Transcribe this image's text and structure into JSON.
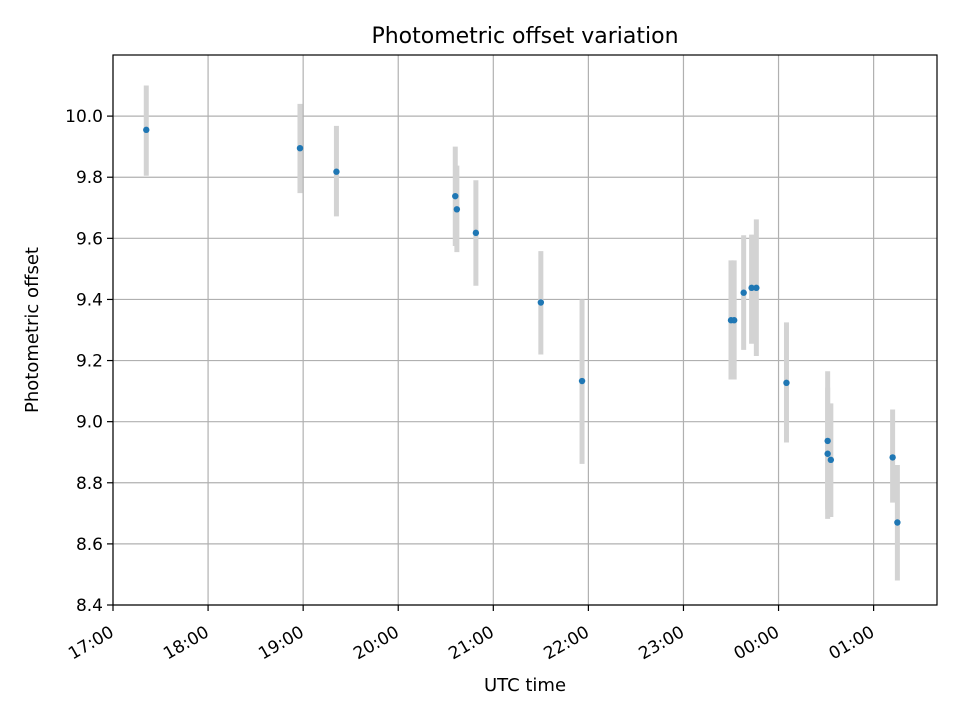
{
  "chart_data": {
    "type": "scatter",
    "title": "Photometric offset variation",
    "xlabel": "UTC time",
    "ylabel": "Photometric offset",
    "x_axis_type": "time",
    "xlim": [
      "17:00",
      "01:40"
    ],
    "ylim": [
      8.4,
      10.2
    ],
    "grid": true,
    "x_ticks": [
      "17:00",
      "18:00",
      "19:00",
      "20:00",
      "21:00",
      "22:00",
      "23:00",
      "00:00",
      "01:00"
    ],
    "y_ticks": [
      "8.4",
      "8.6",
      "8.8",
      "9.0",
      "9.2",
      "9.4",
      "9.6",
      "9.8",
      "10.0"
    ],
    "marker_color": "#1f77b4",
    "errorbar_color": "#d3d3d3",
    "points": [
      {
        "time": "17:21",
        "y": 9.955,
        "ylow": 9.805,
        "yhigh": 10.1
      },
      {
        "time": "18:58",
        "y": 9.895,
        "ylow": 9.748,
        "yhigh": 10.04
      },
      {
        "time": "19:21",
        "y": 9.818,
        "ylow": 9.672,
        "yhigh": 9.968
      },
      {
        "time": "20:36",
        "y": 9.738,
        "ylow": 9.575,
        "yhigh": 9.9
      },
      {
        "time": "20:37",
        "y": 9.695,
        "ylow": 9.555,
        "yhigh": 9.838
      },
      {
        "time": "20:49",
        "y": 9.618,
        "ylow": 9.445,
        "yhigh": 9.79
      },
      {
        "time": "21:30",
        "y": 9.39,
        "ylow": 9.22,
        "yhigh": 9.558
      },
      {
        "time": "21:56",
        "y": 9.133,
        "ylow": 8.862,
        "yhigh": 9.4
      },
      {
        "time": "23:30",
        "y": 9.332,
        "ylow": 9.138,
        "yhigh": 9.528
      },
      {
        "time": "23:32",
        "y": 9.332,
        "ylow": 9.138,
        "yhigh": 9.528
      },
      {
        "time": "23:38",
        "y": 9.422,
        "ylow": 9.235,
        "yhigh": 9.61
      },
      {
        "time": "23:43",
        "y": 9.438,
        "ylow": 9.255,
        "yhigh": 9.612
      },
      {
        "time": "23:46",
        "y": 9.438,
        "ylow": 9.215,
        "yhigh": 9.662
      },
      {
        "time": "00:05",
        "y": 9.127,
        "ylow": 8.932,
        "yhigh": 9.325
      },
      {
        "time": "00:31",
        "y": 8.937,
        "ylow": 8.712,
        "yhigh": 9.165
      },
      {
        "time": "00:31",
        "y": 8.895,
        "ylow": 8.682,
        "yhigh": 9.112
      },
      {
        "time": "00:33",
        "y": 8.875,
        "ylow": 8.688,
        "yhigh": 9.06
      },
      {
        "time": "01:12",
        "y": 8.883,
        "ylow": 8.735,
        "yhigh": 9.04
      },
      {
        "time": "01:15",
        "y": 8.67,
        "ylow": 8.48,
        "yhigh": 8.858
      }
    ]
  }
}
